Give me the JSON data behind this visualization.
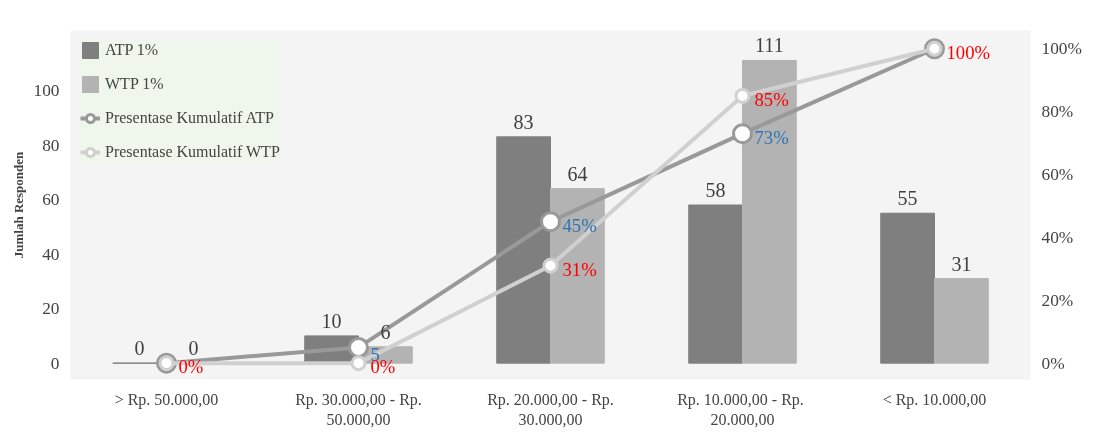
{
  "chart_data": {
    "type": "bar",
    "ylabel": "Jumlah Responden",
    "categories": [
      "> Rp. 50.000,00",
      "Rp. 30.000,00 - Rp. 50.000,00",
      "Rp. 20.000,00 - Rp. 30.000,00",
      "Rp. 10.000,00  - Rp. 20.000,00",
      "< Rp. 10.000,00"
    ],
    "series": [
      {
        "name": "ATP 1%",
        "color": "#7f7f7f",
        "values": [
          0,
          10,
          83,
          58,
          55
        ]
      },
      {
        "name": "WTP 1%",
        "color": "#b3b3b3",
        "values": [
          0,
          6,
          64,
          111,
          31
        ]
      },
      {
        "name": "Presentase Kumulatif ATP",
        "type": "line",
        "axis": "y2",
        "color": "#999999",
        "values": [
          0,
          5,
          45,
          73,
          100
        ],
        "value_labels": [
          null,
          "5",
          "45%",
          "73%",
          null
        ]
      },
      {
        "name": "Presentase Kumulatif WTP",
        "type": "line",
        "axis": "y2",
        "color": "#d0d0d0",
        "values": [
          0,
          0,
          31,
          85,
          100
        ],
        "value_labels": [
          "0%",
          "0%",
          "31%",
          "85%",
          "100%"
        ]
      }
    ],
    "data_labels": true,
    "marker": "circle",
    "line_style": "solid",
    "grid": false,
    "legend": "top left",
    "ylim": [
      -6,
      122
    ],
    "yticks": [
      0,
      20,
      40,
      60,
      80,
      100
    ],
    "y2lim": [
      -5.2,
      105.8
    ],
    "y2ticks": [
      {
        "value": 0,
        "label": "0%"
      },
      {
        "value": 20,
        "label": "20%"
      },
      {
        "value": 40,
        "label": "40%"
      },
      {
        "value": 60,
        "label": "60%"
      },
      {
        "value": 80,
        "label": "80%"
      },
      {
        "value": 100,
        "label": "100%"
      }
    ]
  }
}
